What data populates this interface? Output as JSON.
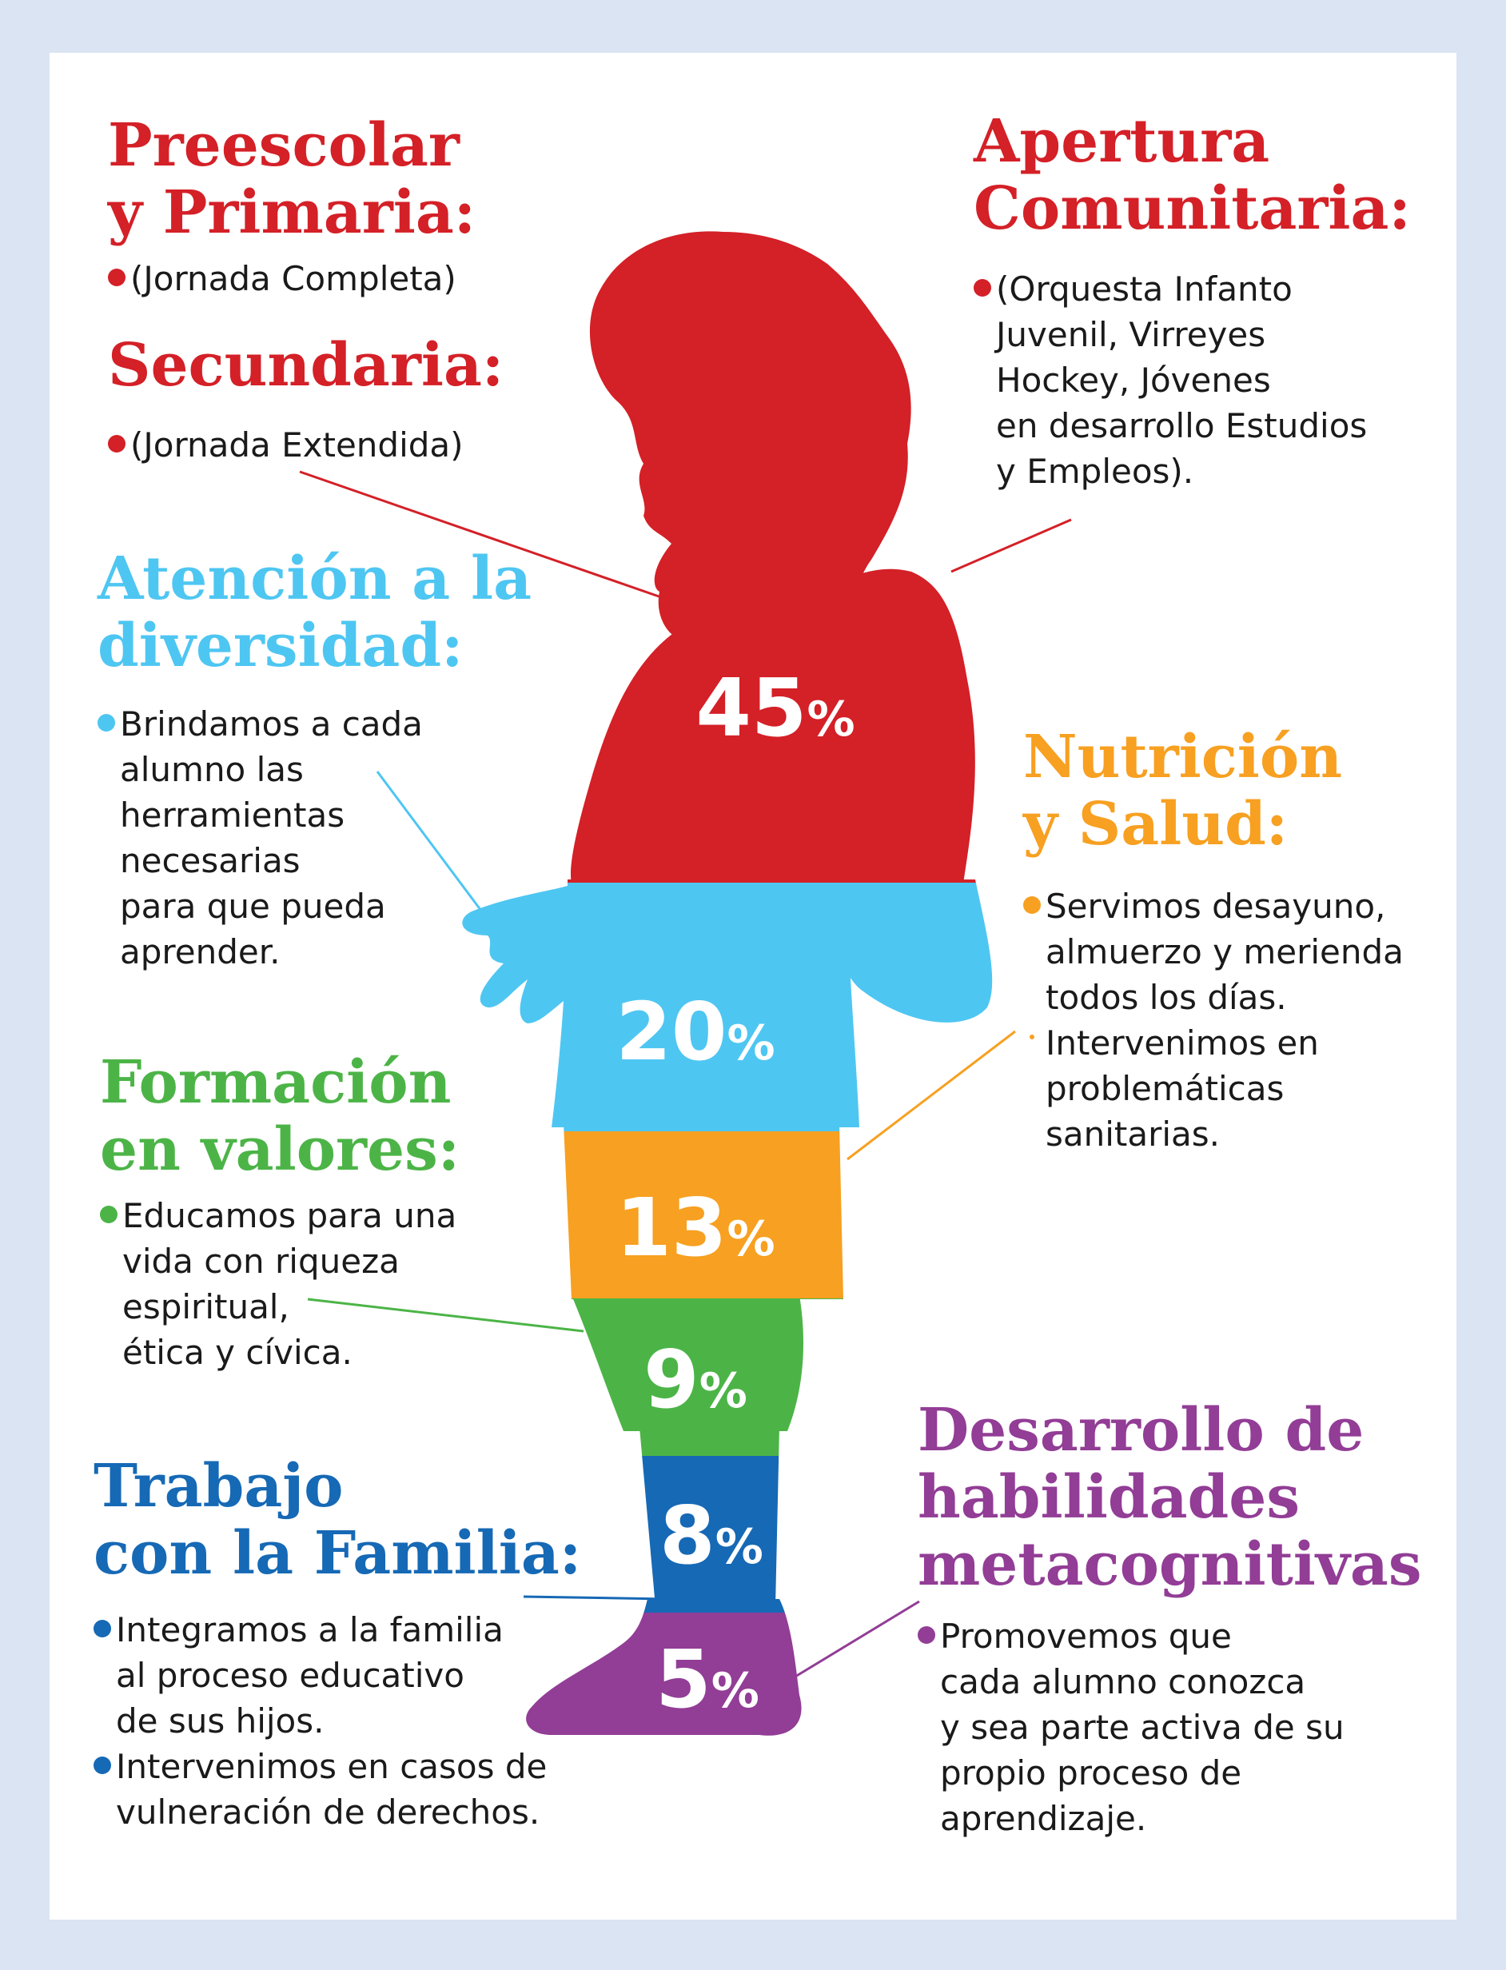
{
  "colors": {
    "red": "#d42027",
    "cyan": "#4ec6f2",
    "orange": "#f7a021",
    "green": "#4cb447",
    "blue": "#1669b5",
    "purple": "#923d96"
  },
  "chart_data": {
    "type": "bar",
    "categories": [
      "Preescolar y Primaria / Secundaria / Apertura Comunitaria",
      "Atención a la diversidad",
      "Nutrición y Salud",
      "Formación en valores",
      "Trabajo con la Familia",
      "Desarrollo de habilidades metacognitivas"
    ],
    "values": [
      45,
      20,
      13,
      9,
      8,
      5
    ]
  },
  "segments": [
    {
      "value": "45",
      "unit": "%"
    },
    {
      "value": "20",
      "unit": "%"
    },
    {
      "value": "13",
      "unit": "%"
    },
    {
      "value": "9",
      "unit": "%"
    },
    {
      "value": "8",
      "unit": "%"
    },
    {
      "value": "5",
      "unit": "%"
    }
  ],
  "sections": {
    "preescolar": {
      "title": "Preescolar\ny Primaria:",
      "items": [
        "(Jornada Completa)"
      ]
    },
    "secundaria": {
      "title": "Secundaria:",
      "items": [
        "(Jornada Extendida)"
      ]
    },
    "apertura": {
      "title": "Apertura\nComunitaria:",
      "items": [
        "(Orquesta Infanto\nJuvenil, Virreyes\nHockey, Jóvenes\nen desarrollo Estudios\ny Empleos)."
      ]
    },
    "diversidad": {
      "title": "Atención a la\ndiversidad:",
      "items": [
        "Brindamos a cada\nalumno las\nherramientas\nnecesarias\npara que pueda\naprender."
      ]
    },
    "nutricion": {
      "title": "Nutrición\ny Salud:",
      "items": [
        "Servimos desayuno,\nalmuerzo y merienda\ntodos los días.",
        "Intervenimos en\nproblemáticas\nsanitarias."
      ]
    },
    "valores": {
      "title": "Formación\nen valores:",
      "items": [
        "Educamos para una\nvida con riqueza\nespiritual,\nética y cívica."
      ]
    },
    "familia": {
      "title": "Trabajo\ncon la Familia:",
      "items": [
        "Integramos a la familia\nal proceso educativo\nde sus hijos.",
        "Intervenimos en casos de\nvulneración de derechos."
      ]
    },
    "metacognitivas": {
      "title": "Desarrollo de\nhabilidades\nmetacognitivas",
      "items": [
        "Promovemos que\ncada alumno conozca\ny sea parte activa de su\npropio proceso de\naprendizaje."
      ]
    }
  }
}
